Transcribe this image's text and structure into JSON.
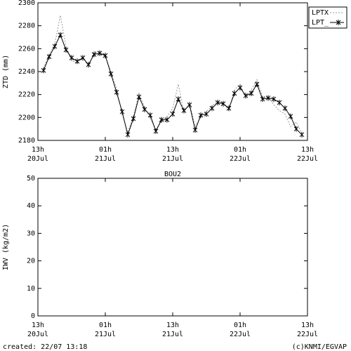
{
  "chart_data": [
    {
      "type": "line",
      "ylabel": "ZTD (mm)",
      "xlim": [
        0,
        48
      ],
      "ylim": [
        2180,
        2300
      ],
      "yticks": [
        2180,
        2200,
        2220,
        2240,
        2260,
        2280,
        2300
      ],
      "xticks": [
        {
          "value": 0,
          "label": "13h",
          "date": "20Jul"
        },
        {
          "value": 12,
          "label": "01h",
          "date": "21Jul"
        },
        {
          "value": 24,
          "label": "13h",
          "date": "21Jul"
        },
        {
          "value": 36,
          "label": "01h",
          "date": "22Jul"
        },
        {
          "value": 48,
          "label": "13h",
          "date": "22Jul"
        }
      ],
      "legend": "upper right",
      "x": [
        1,
        2,
        3,
        4,
        5,
        6,
        7,
        8,
        9,
        10,
        11,
        12,
        13,
        14,
        15,
        16,
        17,
        18,
        19,
        20,
        21,
        22,
        23,
        24,
        25,
        26,
        27,
        28,
        29,
        30,
        31,
        32,
        33,
        34,
        35,
        36,
        37,
        38,
        39,
        40,
        41,
        42,
        43,
        44,
        45,
        46,
        47
      ],
      "series": [
        {
          "name": "LPTX",
          "color": "#999999",
          "style": "dashed",
          "values": [
            2243,
            2255,
            2264,
            2289,
            2262,
            2250,
            2247,
            2253,
            2244,
            2257,
            2258,
            2253,
            2240,
            2225,
            2203,
            2187,
            2201,
            2221,
            2209,
            2199,
            2190,
            2196,
            2201,
            2208,
            2229,
            2204,
            2213,
            2192,
            2200,
            2205,
            2210,
            2214,
            2213,
            2206,
            2224,
            2229,
            2217,
            2224,
            2233,
            2218,
            2218,
            2211,
            2206,
            2203,
            2192,
            2196,
            2186
          ]
        },
        {
          "name": "LPT_",
          "color": "#000000",
          "style": "solid",
          "marker": "star",
          "values": [
            2241,
            2253,
            2262,
            2272,
            2259,
            2252,
            2249,
            2252,
            2246,
            2255,
            2256,
            2254,
            2238,
            2222,
            2205,
            2185,
            2199,
            2218,
            2207,
            2202,
            2188,
            2198,
            2198,
            2203,
            2216,
            2206,
            2211,
            2189,
            2202,
            2203,
            2208,
            2213,
            2212,
            2208,
            2221,
            2226,
            2219,
            2221,
            2229,
            2216,
            2217,
            2216,
            2213,
            2208,
            2201,
            2190,
            2185
          ]
        }
      ]
    },
    {
      "type": "line",
      "title": "BOU2",
      "ylabel": "IWV (kg/m2)",
      "xlim": [
        0,
        48
      ],
      "ylim": [
        0,
        50
      ],
      "yticks": [
        0,
        10,
        20,
        30,
        40,
        50
      ],
      "xticks": [
        {
          "value": 0,
          "label": "13h",
          "date": "20Jul"
        },
        {
          "value": 12,
          "label": "01h",
          "date": "21Jul"
        },
        {
          "value": 24,
          "label": "13h",
          "date": "21Jul"
        },
        {
          "value": 36,
          "label": "01h",
          "date": "22Jul"
        },
        {
          "value": 48,
          "label": "13h",
          "date": "22Jul"
        }
      ],
      "x": [],
      "series": []
    }
  ],
  "footer": {
    "created": "created: 22/07 13:18",
    "copyright": "(c)KNMI/EGVAP"
  }
}
